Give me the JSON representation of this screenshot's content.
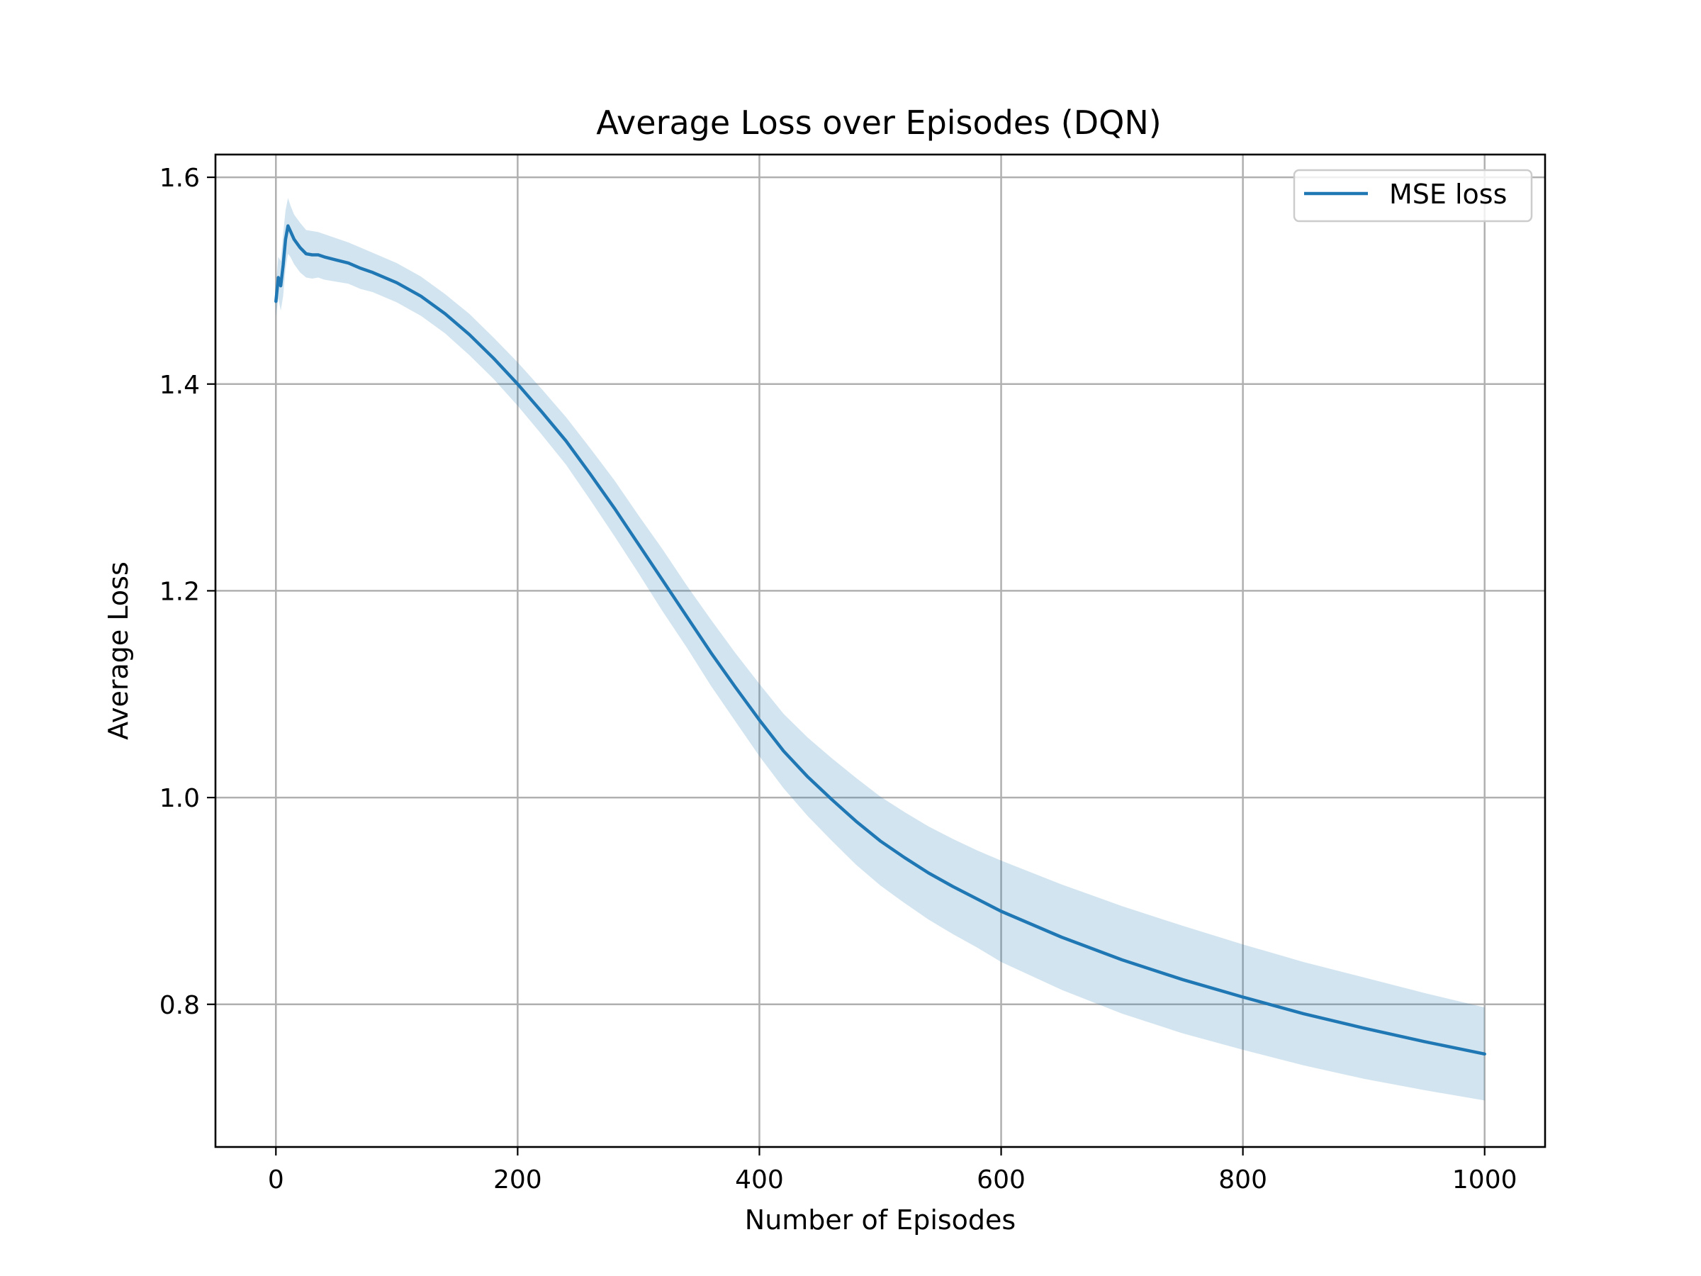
{
  "chart_data": {
    "type": "line",
    "title": "Average Loss over Episodes (DQN)",
    "xlabel": "Number of Episodes",
    "ylabel": "Average Loss",
    "xlim": [
      -50,
      1050
    ],
    "ylim": [
      0.662,
      1.622
    ],
    "xticks": [
      0,
      200,
      400,
      600,
      800,
      1000
    ],
    "yticks": [
      0.8,
      1.0,
      1.2,
      1.4,
      1.6
    ],
    "xtick_labels": [
      "0",
      "200",
      "400",
      "600",
      "800",
      "1000"
    ],
    "ytick_labels": [
      "0.8",
      "1.0",
      "1.2",
      "1.4",
      "1.6"
    ],
    "grid": true,
    "legend": {
      "position": "top-right",
      "entries": [
        "MSE loss"
      ]
    },
    "series": [
      {
        "name": "MSE loss",
        "color": "#1f77b4",
        "band_color": "#1f77b4",
        "band_opacity": 0.2,
        "x": [
          0,
          2,
          4,
          6,
          8,
          10,
          12,
          15,
          20,
          25,
          30,
          35,
          40,
          50,
          60,
          70,
          80,
          100,
          120,
          140,
          160,
          180,
          200,
          220,
          240,
          260,
          280,
          300,
          320,
          340,
          360,
          380,
          400,
          420,
          440,
          460,
          480,
          500,
          520,
          540,
          560,
          580,
          600,
          650,
          700,
          750,
          800,
          850,
          900,
          950,
          1000
        ],
        "y": [
          1.48,
          1.503,
          1.495,
          1.515,
          1.54,
          1.553,
          1.548,
          1.54,
          1.532,
          1.526,
          1.525,
          1.525,
          1.523,
          1.52,
          1.517,
          1.512,
          1.508,
          1.498,
          1.485,
          1.468,
          1.448,
          1.425,
          1.4,
          1.373,
          1.345,
          1.313,
          1.28,
          1.245,
          1.21,
          1.175,
          1.14,
          1.107,
          1.075,
          1.045,
          1.02,
          0.998,
          0.977,
          0.958,
          0.942,
          0.927,
          0.914,
          0.902,
          0.89,
          0.865,
          0.843,
          0.824,
          0.807,
          0.791,
          0.777,
          0.764,
          0.752
        ],
        "upper": [
          1.495,
          1.523,
          1.519,
          1.545,
          1.568,
          1.58,
          1.573,
          1.564,
          1.556,
          1.549,
          1.548,
          1.547,
          1.545,
          1.541,
          1.537,
          1.532,
          1.527,
          1.517,
          1.504,
          1.487,
          1.468,
          1.445,
          1.421,
          1.395,
          1.368,
          1.338,
          1.307,
          1.273,
          1.24,
          1.205,
          1.172,
          1.14,
          1.11,
          1.081,
          1.058,
          1.038,
          1.019,
          1.001,
          0.986,
          0.972,
          0.96,
          0.949,
          0.939,
          0.916,
          0.895,
          0.876,
          0.858,
          0.841,
          0.826,
          0.811,
          0.797
        ],
        "lower": [
          1.465,
          1.483,
          1.471,
          1.485,
          1.512,
          1.526,
          1.523,
          1.516,
          1.508,
          1.503,
          1.502,
          1.503,
          1.501,
          1.499,
          1.497,
          1.492,
          1.489,
          1.479,
          1.466,
          1.449,
          1.428,
          1.405,
          1.379,
          1.351,
          1.322,
          1.288,
          1.253,
          1.217,
          1.18,
          1.145,
          1.108,
          1.074,
          1.04,
          1.009,
          0.982,
          0.958,
          0.935,
          0.915,
          0.898,
          0.882,
          0.868,
          0.855,
          0.841,
          0.814,
          0.791,
          0.772,
          0.756,
          0.741,
          0.728,
          0.717,
          0.707
        ]
      }
    ]
  }
}
